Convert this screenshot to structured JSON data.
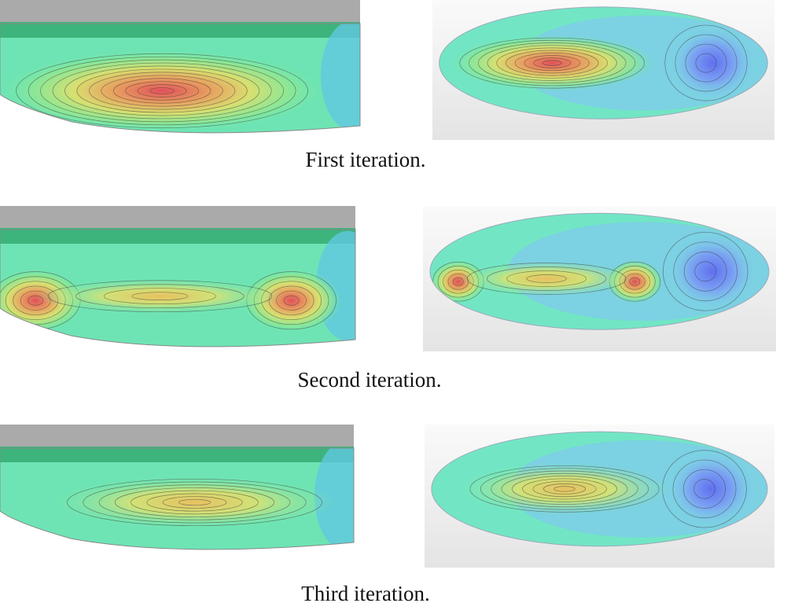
{
  "figure": {
    "captions": [
      "First iteration.",
      "Second iteration.",
      "Third iteration."
    ]
  }
}
